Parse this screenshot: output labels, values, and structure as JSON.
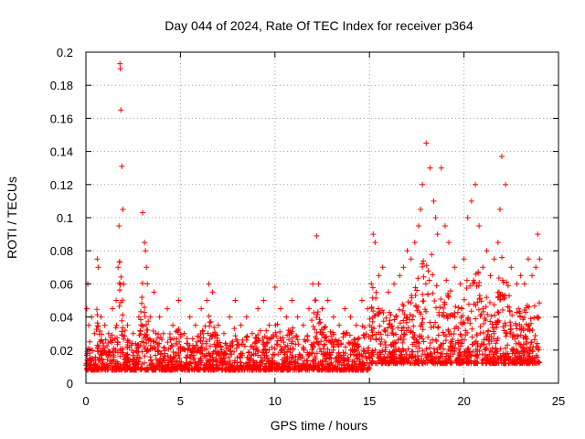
{
  "chart_data": {
    "type": "scatter",
    "title": "Day 044 of 2024, Rate Of TEC Index for receiver p364",
    "xlabel": "GPS time / hours",
    "ylabel": "ROTI / TECUs",
    "xlim": [
      0,
      25
    ],
    "ylim": [
      0,
      0.2
    ],
    "x_ticks": [
      0,
      5,
      10,
      15,
      20,
      25
    ],
    "y_ticks": [
      0,
      0.02,
      0.04,
      0.06,
      0.08,
      0.1,
      0.12,
      0.14,
      0.16,
      0.18,
      0.2
    ],
    "x_tick_labels": [
      "0",
      "5",
      "10",
      "15",
      "20",
      "25"
    ],
    "y_tick_labels": [
      "0",
      "0.02",
      "0.04",
      "0.06",
      "0.08",
      "0.1",
      "0.12",
      "0.14",
      "0.16",
      "0.18",
      "0.2"
    ],
    "grid": true,
    "marker": "+",
    "color": "#ff0000",
    "series": [
      {
        "name": "ROTI",
        "x": [
          0.05,
          0.1,
          0.15,
          0.2,
          0.3,
          0.45,
          0.6,
          0.65,
          0.8,
          1.0,
          1.2,
          1.4,
          1.6,
          1.7,
          1.75,
          1.8,
          1.82,
          1.85,
          1.9,
          1.95,
          2.0,
          2.2,
          2.5,
          2.8,
          3.0,
          3.1,
          3.15,
          3.2,
          3.25,
          3.4,
          3.6,
          3.9,
          4.1,
          4.3,
          4.6,
          4.9,
          5.2,
          5.5,
          5.8,
          6.1,
          6.4,
          6.5,
          6.7,
          7.0,
          7.3,
          7.6,
          7.9,
          8.2,
          8.5,
          8.8,
          9.1,
          9.4,
          9.7,
          10.0,
          10.3,
          10.6,
          10.9,
          11.2,
          11.5,
          11.8,
          12.0,
          12.2,
          12.3,
          12.5,
          12.8,
          13.1,
          13.4,
          13.7,
          14.0,
          14.3,
          14.6,
          14.9,
          15.1,
          15.2,
          15.3,
          15.5,
          15.7,
          16.0,
          16.3,
          16.6,
          16.8,
          17.0,
          17.2,
          17.4,
          17.6,
          17.7,
          17.8,
          18.0,
          18.2,
          18.4,
          18.5,
          18.6,
          18.8,
          19.0,
          19.2,
          19.5,
          19.8,
          20.0,
          20.2,
          20.4,
          20.6,
          20.8,
          21.0,
          21.2,
          21.4,
          21.6,
          21.8,
          21.9,
          22.0,
          22.2,
          22.5,
          22.8,
          23.0,
          23.2,
          23.4,
          23.6,
          23.8,
          23.9,
          24.0
        ],
        "y": [
          0.045,
          0.06,
          0.035,
          0.025,
          0.04,
          0.03,
          0.075,
          0.07,
          0.04,
          0.035,
          0.03,
          0.045,
          0.05,
          0.07,
          0.095,
          0.193,
          0.19,
          0.165,
          0.131,
          0.105,
          0.06,
          0.035,
          0.03,
          0.04,
          0.103,
          0.085,
          0.08,
          0.07,
          0.06,
          0.04,
          0.055,
          0.04,
          0.03,
          0.045,
          0.035,
          0.05,
          0.03,
          0.04,
          0.035,
          0.045,
          0.05,
          0.06,
          0.055,
          0.035,
          0.03,
          0.04,
          0.05,
          0.035,
          0.04,
          0.03,
          0.045,
          0.05,
          0.035,
          0.058,
          0.045,
          0.04,
          0.05,
          0.04,
          0.035,
          0.045,
          0.06,
          0.089,
          0.06,
          0.045,
          0.05,
          0.04,
          0.035,
          0.045,
          0.04,
          0.035,
          0.05,
          0.045,
          0.06,
          0.09,
          0.085,
          0.065,
          0.07,
          0.055,
          0.06,
          0.065,
          0.07,
          0.08,
          0.075,
          0.085,
          0.095,
          0.105,
          0.12,
          0.145,
          0.13,
          0.11,
          0.1,
          0.09,
          0.13,
          0.095,
          0.085,
          0.07,
          0.06,
          0.075,
          0.1,
          0.11,
          0.12,
          0.095,
          0.07,
          0.08,
          0.065,
          0.075,
          0.085,
          0.105,
          0.137,
          0.12,
          0.07,
          0.06,
          0.065,
          0.06,
          0.075,
          0.065,
          0.07,
          0.09,
          0.075
        ]
      }
    ]
  }
}
